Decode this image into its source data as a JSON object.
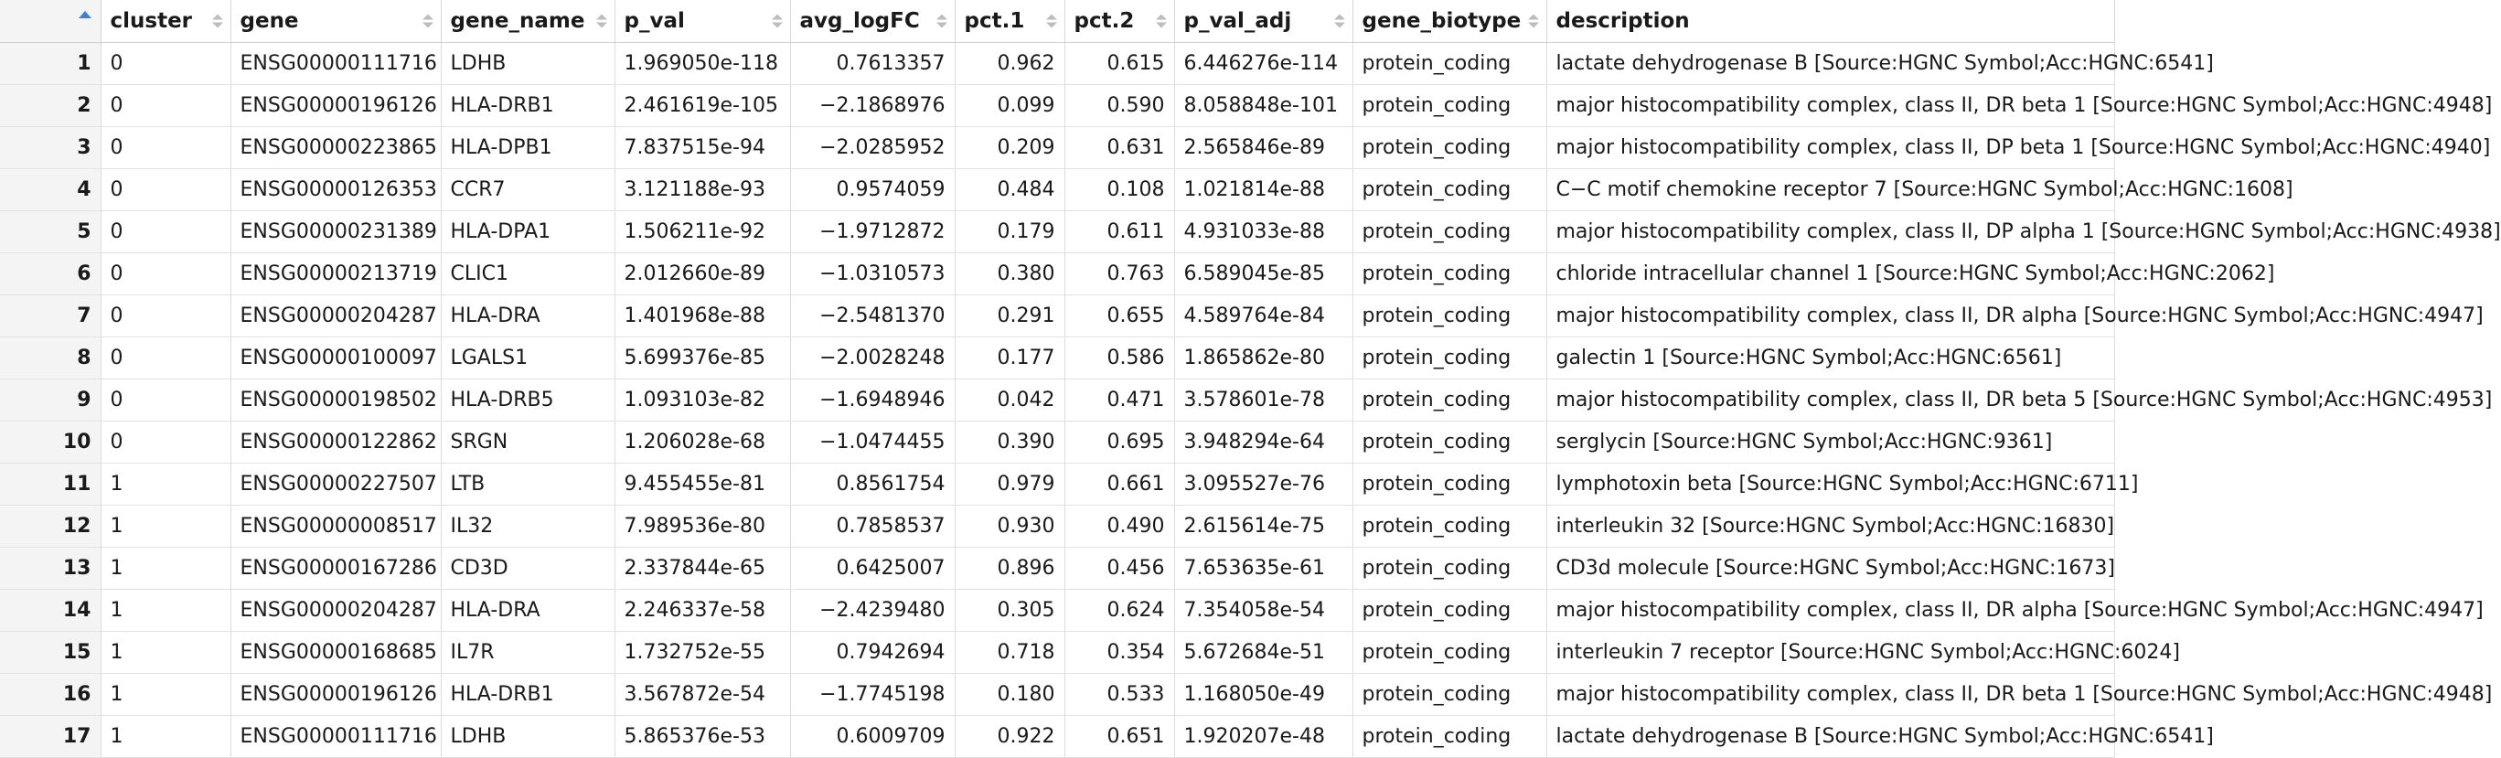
{
  "columns": {
    "cluster": "cluster",
    "gene": "gene",
    "gene_name": "gene_name",
    "p_val": "p_val",
    "avg_logFC": "avg_logFC",
    "pct1": "pct.1",
    "pct2": "pct.2",
    "p_val_adj": "p_val_adj",
    "gene_biotype": "gene_biotype",
    "description": "description"
  },
  "sort_icon": "sort-ascending-icon",
  "accent_color": "#3b82d6",
  "rows": [
    {
      "idx": "1",
      "cluster": "0",
      "gene": "ENSG00000111716",
      "gene_name": "LDHB",
      "p_val": "1.969050e-118",
      "avg_logFC": "0.7613357",
      "pct1": "0.962",
      "pct2": "0.615",
      "p_val_adj": "6.446276e-114",
      "gene_biotype": "protein_coding",
      "description": "lactate dehydrogenase B [Source:HGNC Symbol;Acc:HGNC:6541]"
    },
    {
      "idx": "2",
      "cluster": "0",
      "gene": "ENSG00000196126",
      "gene_name": "HLA-DRB1",
      "p_val": "2.461619e-105",
      "avg_logFC": "−2.1868976",
      "pct1": "0.099",
      "pct2": "0.590",
      "p_val_adj": "8.058848e-101",
      "gene_biotype": "protein_coding",
      "description": "major histocompatibility complex, class II, DR beta 1 [Source:HGNC Symbol;Acc:HGNC:4948]"
    },
    {
      "idx": "3",
      "cluster": "0",
      "gene": "ENSG00000223865",
      "gene_name": "HLA-DPB1",
      "p_val": "7.837515e-94",
      "avg_logFC": "−2.0285952",
      "pct1": "0.209",
      "pct2": "0.631",
      "p_val_adj": "2.565846e-89",
      "gene_biotype": "protein_coding",
      "description": "major histocompatibility complex, class II, DP beta 1 [Source:HGNC Symbol;Acc:HGNC:4940]"
    },
    {
      "idx": "4",
      "cluster": "0",
      "gene": "ENSG00000126353",
      "gene_name": "CCR7",
      "p_val": "3.121188e-93",
      "avg_logFC": "0.9574059",
      "pct1": "0.484",
      "pct2": "0.108",
      "p_val_adj": "1.021814e-88",
      "gene_biotype": "protein_coding",
      "description": "C−C motif chemokine receptor 7 [Source:HGNC Symbol;Acc:HGNC:1608]"
    },
    {
      "idx": "5",
      "cluster": "0",
      "gene": "ENSG00000231389",
      "gene_name": "HLA-DPA1",
      "p_val": "1.506211e-92",
      "avg_logFC": "−1.9712872",
      "pct1": "0.179",
      "pct2": "0.611",
      "p_val_adj": "4.931033e-88",
      "gene_biotype": "protein_coding",
      "description": "major histocompatibility complex, class II, DP alpha 1 [Source:HGNC Symbol;Acc:HGNC:4938]"
    },
    {
      "idx": "6",
      "cluster": "0",
      "gene": "ENSG00000213719",
      "gene_name": "CLIC1",
      "p_val": "2.012660e-89",
      "avg_logFC": "−1.0310573",
      "pct1": "0.380",
      "pct2": "0.763",
      "p_val_adj": "6.589045e-85",
      "gene_biotype": "protein_coding",
      "description": "chloride intracellular channel 1 [Source:HGNC Symbol;Acc:HGNC:2062]"
    },
    {
      "idx": "7",
      "cluster": "0",
      "gene": "ENSG00000204287",
      "gene_name": "HLA-DRA",
      "p_val": "1.401968e-88",
      "avg_logFC": "−2.5481370",
      "pct1": "0.291",
      "pct2": "0.655",
      "p_val_adj": "4.589764e-84",
      "gene_biotype": "protein_coding",
      "description": "major histocompatibility complex, class II, DR alpha [Source:HGNC Symbol;Acc:HGNC:4947]"
    },
    {
      "idx": "8",
      "cluster": "0",
      "gene": "ENSG00000100097",
      "gene_name": "LGALS1",
      "p_val": "5.699376e-85",
      "avg_logFC": "−2.0028248",
      "pct1": "0.177",
      "pct2": "0.586",
      "p_val_adj": "1.865862e-80",
      "gene_biotype": "protein_coding",
      "description": "galectin 1 [Source:HGNC Symbol;Acc:HGNC:6561]"
    },
    {
      "idx": "9",
      "cluster": "0",
      "gene": "ENSG00000198502",
      "gene_name": "HLA-DRB5",
      "p_val": "1.093103e-82",
      "avg_logFC": "−1.6948946",
      "pct1": "0.042",
      "pct2": "0.471",
      "p_val_adj": "3.578601e-78",
      "gene_biotype": "protein_coding",
      "description": "major histocompatibility complex, class II, DR beta 5 [Source:HGNC Symbol;Acc:HGNC:4953]"
    },
    {
      "idx": "10",
      "cluster": "0",
      "gene": "ENSG00000122862",
      "gene_name": "SRGN",
      "p_val": "1.206028e-68",
      "avg_logFC": "−1.0474455",
      "pct1": "0.390",
      "pct2": "0.695",
      "p_val_adj": "3.948294e-64",
      "gene_biotype": "protein_coding",
      "description": "serglycin [Source:HGNC Symbol;Acc:HGNC:9361]"
    },
    {
      "idx": "11",
      "cluster": "1",
      "gene": "ENSG00000227507",
      "gene_name": "LTB",
      "p_val": "9.455455e-81",
      "avg_logFC": "0.8561754",
      "pct1": "0.979",
      "pct2": "0.661",
      "p_val_adj": "3.095527e-76",
      "gene_biotype": "protein_coding",
      "description": "lymphotoxin beta [Source:HGNC Symbol;Acc:HGNC:6711]"
    },
    {
      "idx": "12",
      "cluster": "1",
      "gene": "ENSG00000008517",
      "gene_name": "IL32",
      "p_val": "7.989536e-80",
      "avg_logFC": "0.7858537",
      "pct1": "0.930",
      "pct2": "0.490",
      "p_val_adj": "2.615614e-75",
      "gene_biotype": "protein_coding",
      "description": "interleukin 32 [Source:HGNC Symbol;Acc:HGNC:16830]"
    },
    {
      "idx": "13",
      "cluster": "1",
      "gene": "ENSG00000167286",
      "gene_name": "CD3D",
      "p_val": "2.337844e-65",
      "avg_logFC": "0.6425007",
      "pct1": "0.896",
      "pct2": "0.456",
      "p_val_adj": "7.653635e-61",
      "gene_biotype": "protein_coding",
      "description": "CD3d molecule [Source:HGNC Symbol;Acc:HGNC:1673]"
    },
    {
      "idx": "14",
      "cluster": "1",
      "gene": "ENSG00000204287",
      "gene_name": "HLA-DRA",
      "p_val": "2.246337e-58",
      "avg_logFC": "−2.4239480",
      "pct1": "0.305",
      "pct2": "0.624",
      "p_val_adj": "7.354058e-54",
      "gene_biotype": "protein_coding",
      "description": "major histocompatibility complex, class II, DR alpha [Source:HGNC Symbol;Acc:HGNC:4947]"
    },
    {
      "idx": "15",
      "cluster": "1",
      "gene": "ENSG00000168685",
      "gene_name": "IL7R",
      "p_val": "1.732752e-55",
      "avg_logFC": "0.7942694",
      "pct1": "0.718",
      "pct2": "0.354",
      "p_val_adj": "5.672684e-51",
      "gene_biotype": "protein_coding",
      "description": "interleukin 7 receptor [Source:HGNC Symbol;Acc:HGNC:6024]"
    },
    {
      "idx": "16",
      "cluster": "1",
      "gene": "ENSG00000196126",
      "gene_name": "HLA-DRB1",
      "p_val": "3.567872e-54",
      "avg_logFC": "−1.7745198",
      "pct1": "0.180",
      "pct2": "0.533",
      "p_val_adj": "1.168050e-49",
      "gene_biotype": "protein_coding",
      "description": "major histocompatibility complex, class II, DR beta 1 [Source:HGNC Symbol;Acc:HGNC:4948]"
    },
    {
      "idx": "17",
      "cluster": "1",
      "gene": "ENSG00000111716",
      "gene_name": "LDHB",
      "p_val": "5.865376e-53",
      "avg_logFC": "0.6009709",
      "pct1": "0.922",
      "pct2": "0.651",
      "p_val_adj": "1.920207e-48",
      "gene_biotype": "protein_coding",
      "description": "lactate dehydrogenase B [Source:HGNC Symbol;Acc:HGNC:6541]"
    }
  ]
}
